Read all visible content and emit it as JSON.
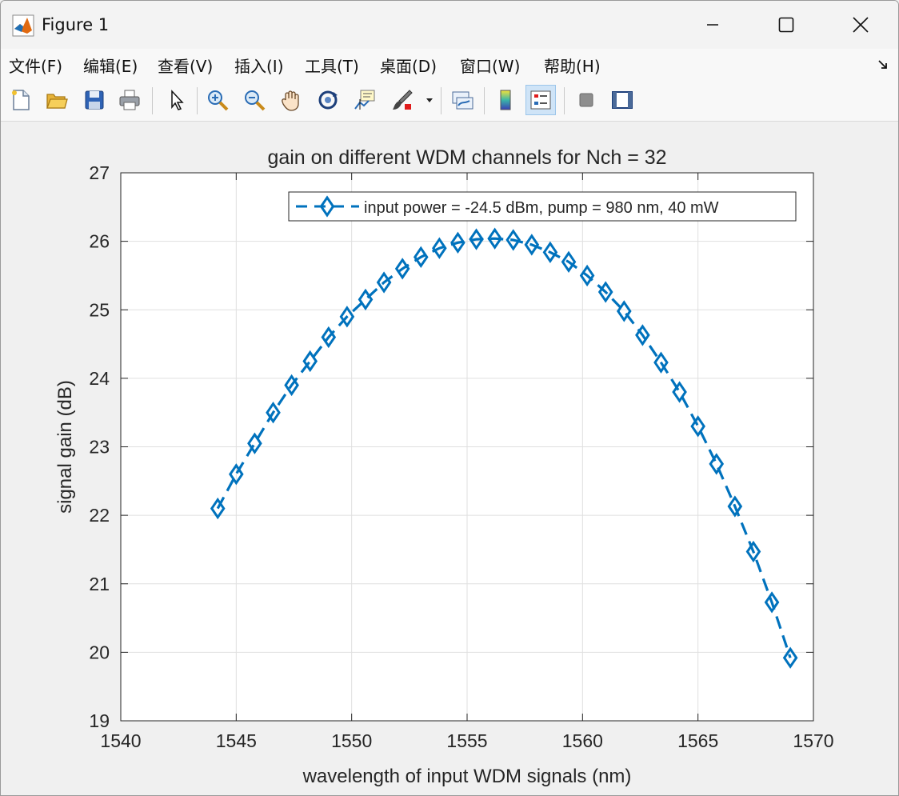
{
  "window": {
    "title": "Figure 1"
  },
  "menu": {
    "items": [
      "文件(F)",
      "编辑(E)",
      "查看(V)",
      "插入(I)",
      "工具(T)",
      "桌面(D)",
      "窗口(W)",
      "帮助(H)"
    ]
  },
  "toolbar": {
    "buttons": [
      "new-figure",
      "open-file",
      "save",
      "print",
      "edit-plot",
      "zoom-in",
      "zoom-out",
      "pan",
      "rotate-3d",
      "data-cursor",
      "brush",
      "link-plot",
      "insert-colorbar",
      "insert-legend",
      "hide-plot-tools",
      "show-plot-tools"
    ]
  },
  "chart_data": {
    "type": "line",
    "title": "gain on different WDM channels for Nch = 32",
    "xlabel": "wavelength of input WDM signals (nm)",
    "ylabel": "signal gain (dB)",
    "xlim": [
      1540,
      1570
    ],
    "ylim": [
      19,
      27
    ],
    "xticks": [
      1540,
      1545,
      1550,
      1555,
      1560,
      1565,
      1570
    ],
    "yticks": [
      19,
      20,
      21,
      22,
      23,
      24,
      25,
      26,
      27
    ],
    "grid": true,
    "legend_position": "top-right",
    "series": [
      {
        "name": "input power = -24.5 dBm, pump = 980 nm, 40 mW",
        "color": "#0072BD",
        "line_style": "dashed",
        "marker": "diamond",
        "x": [
          1544.2,
          1545.0,
          1545.8,
          1546.6,
          1547.4,
          1548.2,
          1549.0,
          1549.8,
          1550.6,
          1551.4,
          1552.2,
          1553.0,
          1553.8,
          1554.6,
          1555.4,
          1556.2,
          1557.0,
          1557.8,
          1558.6,
          1559.4,
          1560.2,
          1561.0,
          1561.8,
          1562.6,
          1563.4,
          1564.2,
          1565.0,
          1565.8,
          1566.6,
          1567.4,
          1568.2,
          1569.0
        ],
        "y": [
          22.1,
          22.6,
          23.05,
          23.5,
          23.9,
          24.25,
          24.6,
          24.9,
          25.15,
          25.4,
          25.6,
          25.77,
          25.9,
          25.98,
          26.03,
          26.04,
          26.02,
          25.95,
          25.84,
          25.7,
          25.5,
          25.26,
          24.98,
          24.63,
          24.23,
          23.8,
          23.3,
          22.75,
          22.13,
          21.47,
          20.73,
          19.92
        ]
      }
    ]
  }
}
